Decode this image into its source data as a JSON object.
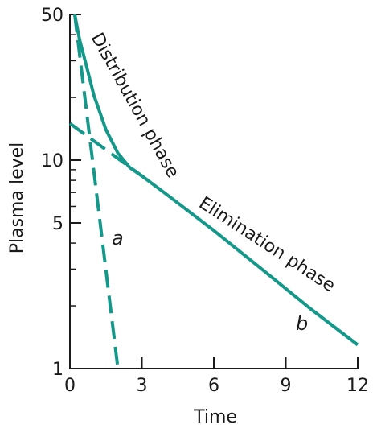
{
  "chart_data": {
    "type": "line",
    "xlabel": "Time",
    "ylabel": "Plasma level",
    "xlim": [
      0,
      12
    ],
    "ylim": [
      1,
      50
    ],
    "y_scale": "log",
    "grid": false,
    "x_ticks": [
      0,
      3,
      6,
      9,
      12
    ],
    "y_ticks": [
      1,
      5,
      10,
      50
    ],
    "series_color": "#13988a",
    "series": [
      {
        "style": "solid",
        "x": [
          0.2,
          0.4,
          0.7,
          1.0,
          1.5,
          2.0,
          2.5,
          3.0,
          4.0,
          6.0,
          8.0,
          10.0,
          12.0
        ],
        "y": [
          50,
          38,
          28,
          20.5,
          14.0,
          10.8,
          9.2,
          8.4,
          6.9,
          4.6,
          3.0,
          1.95,
          1.3
        ]
      },
      {
        "name": "a",
        "style": "dashed",
        "x": [
          0.2,
          2.0
        ],
        "y": [
          50,
          1
        ]
      },
      {
        "style": "dashed",
        "x": [
          0,
          3.0
        ],
        "y": [
          15,
          8.4
        ]
      }
    ],
    "annotations": {
      "distribution": "Distribution phase",
      "elimination": "Elimination phase",
      "label_a": "a",
      "label_b": "b"
    }
  }
}
